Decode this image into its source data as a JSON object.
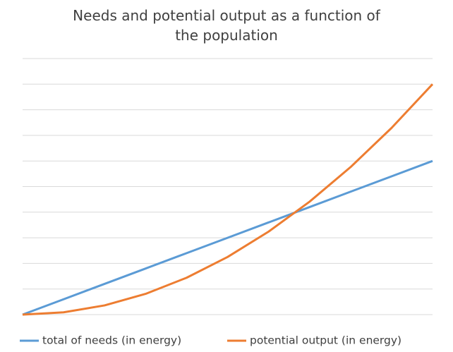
{
  "chart_data": {
    "type": "line",
    "title": "Needs and potential output as a function of the population",
    "categories": [
      null,
      null,
      null,
      null,
      null,
      null,
      null,
      null,
      null,
      null,
      null
    ],
    "series": [
      {
        "name": "total of needs (in energy)",
        "color": "#5b9bd5",
        "values": [
          0,
          0.6,
          1.2,
          1.8,
          2.4,
          3,
          3.6,
          4.2,
          4.8,
          5.4,
          6
        ]
      },
      {
        "name": "potential output (in energy)",
        "color": "#ed7d31",
        "values": [
          0,
          0.09,
          0.36,
          0.81,
          1.44,
          2.25,
          3.24,
          4.41,
          5.76,
          7.29,
          9
        ]
      }
    ],
    "ylim": [
      0,
      10
    ],
    "yticks": [
      0,
      1,
      2,
      3,
      4,
      5,
      6,
      7,
      8,
      9,
      10
    ],
    "grid": true,
    "legend": "bottom"
  }
}
